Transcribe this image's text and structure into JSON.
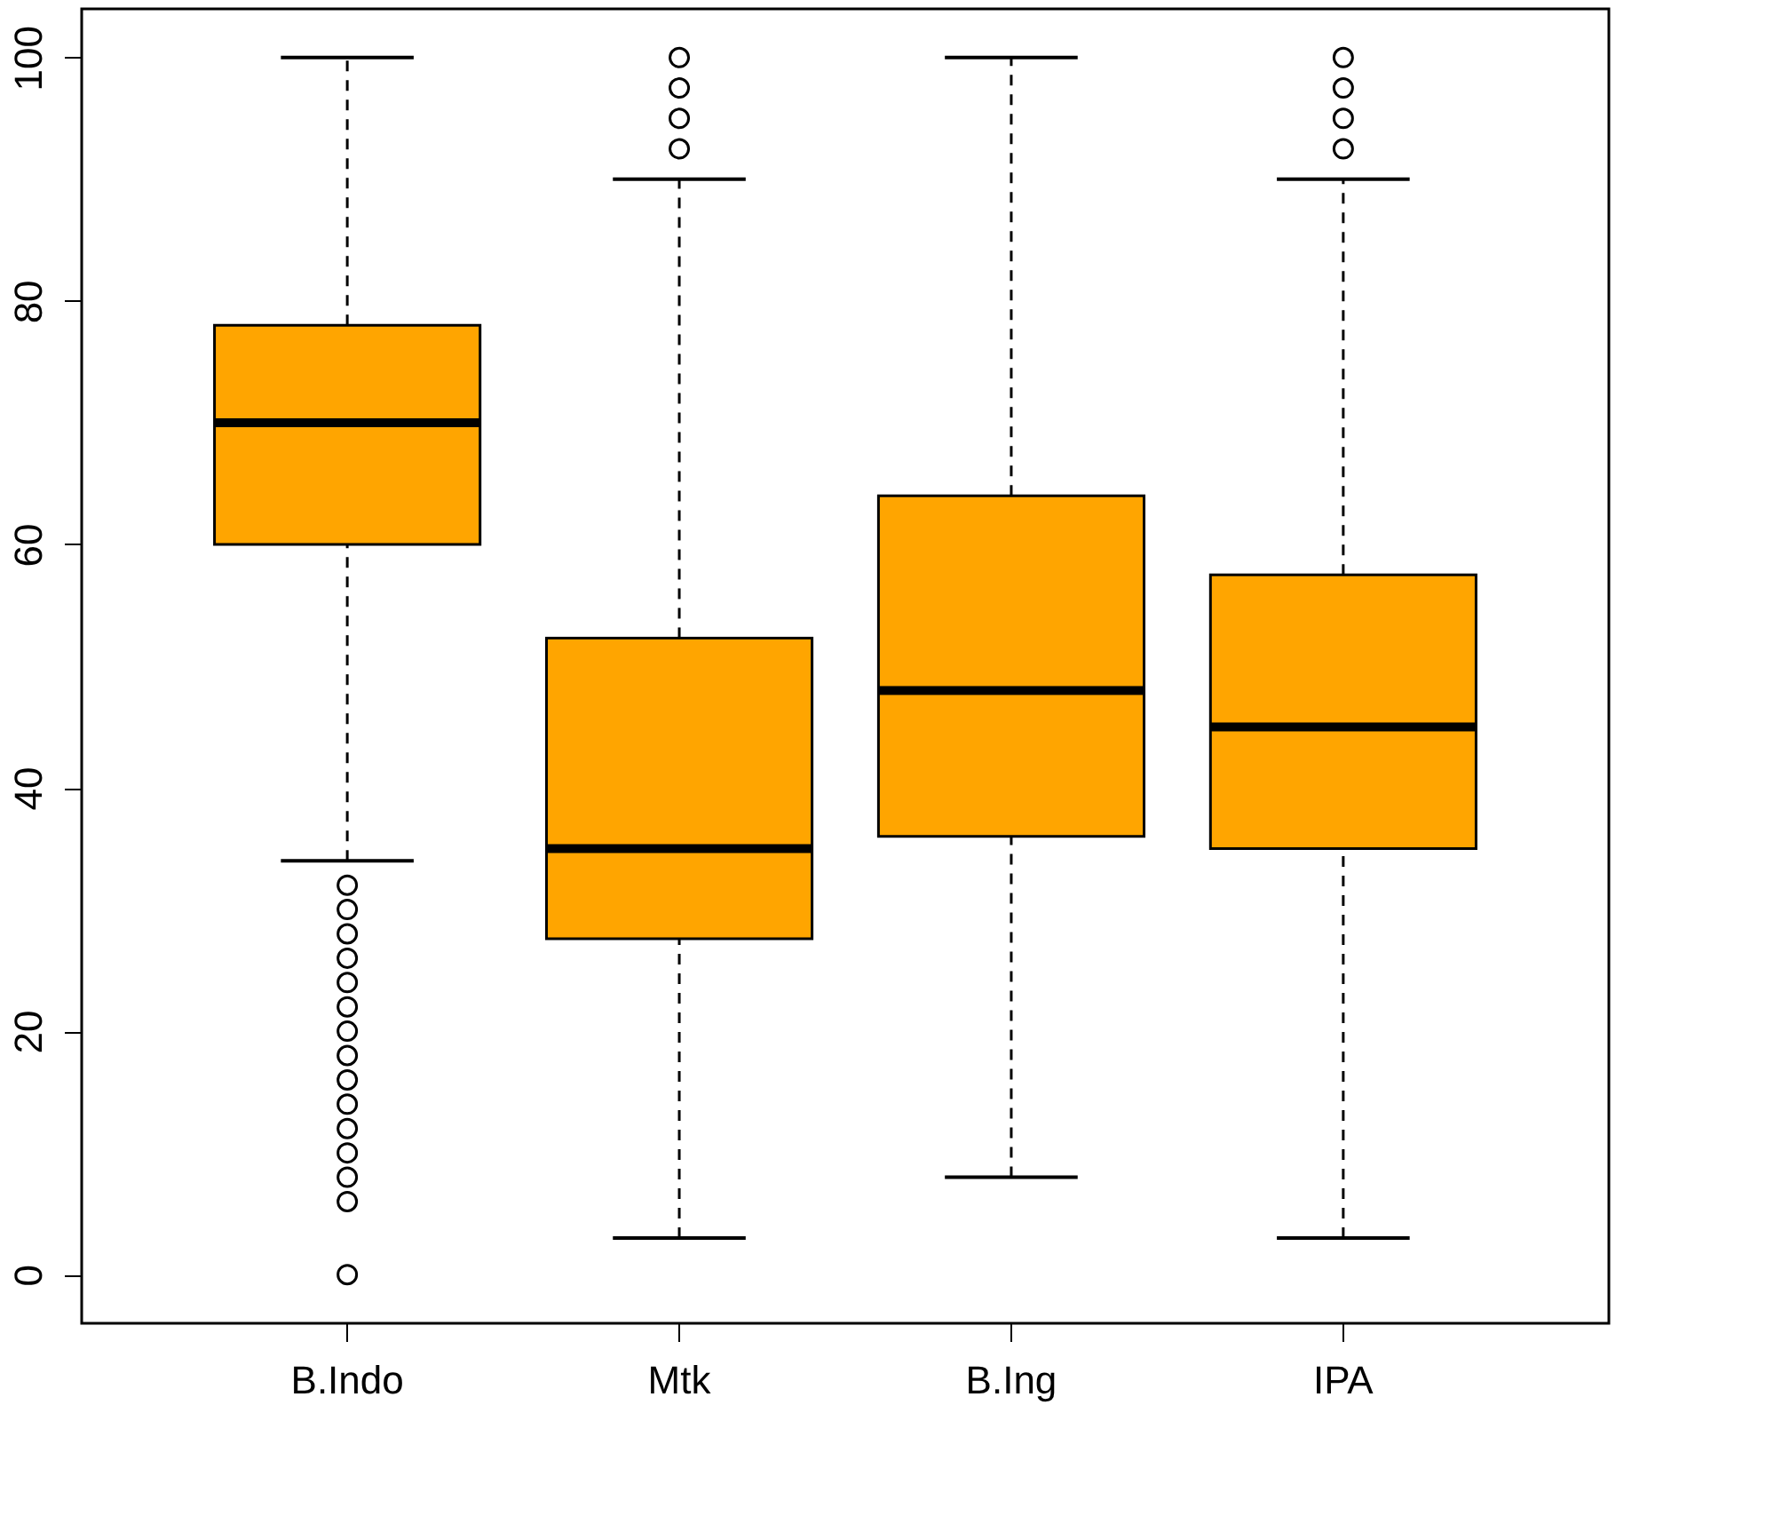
{
  "chart_data": {
    "type": "box",
    "categories": [
      "B.Indo",
      "Mtk",
      "B.Ing",
      "IPA"
    ],
    "color": "#ffa500",
    "boxes": [
      {
        "low": 34,
        "q1": 60,
        "median": 70,
        "q3": 78,
        "high": 100,
        "outliers": [
          32,
          30,
          28,
          26,
          24,
          22,
          20,
          18,
          16,
          14,
          12,
          10,
          8,
          6,
          0
        ]
      },
      {
        "low": 3,
        "q1": 27.6,
        "median": 35,
        "q3": 52.3,
        "high": 90,
        "outliers": [
          92.5,
          95,
          97.5,
          100
        ]
      },
      {
        "low": 8,
        "q1": 36,
        "median": 48,
        "q3": 64,
        "high": 100
      },
      {
        "low": 3,
        "q1": 35,
        "median": 45,
        "q3": 57.5,
        "high": 90,
        "outliers": [
          92.5,
          95,
          97.5,
          100
        ]
      }
    ],
    "ylim": [
      -4,
      104
    ],
    "yticks": [
      0,
      20,
      40,
      60,
      80,
      100
    ],
    "grid": false,
    "line_style": "dashed",
    "marker": "circle"
  }
}
